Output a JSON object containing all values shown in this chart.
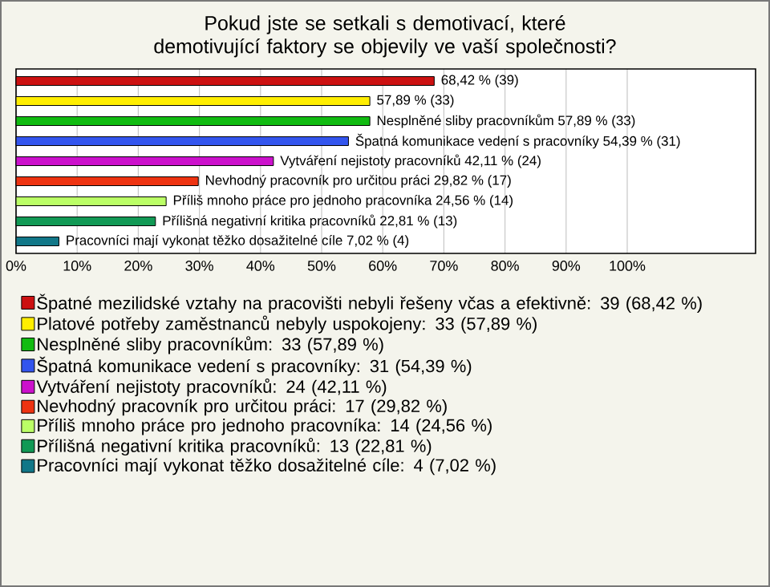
{
  "chart_data": {
    "type": "bar",
    "orientation": "horizontal",
    "title": "Pokud jste se setkali s demotivací, které demotivující faktory se objevily ve vaší společnosti?",
    "categories": [
      null,
      null,
      null,
      null,
      null,
      null,
      null,
      null,
      null
    ],
    "series": [
      {
        "name": "Špatné mezilidské vztahy na pracovišti nebyli řešeny včas a efektivně: 39 (68,42 %)",
        "color": "#cc1111",
        "values": [
          68.42,
          null,
          null,
          null,
          null,
          null,
          null,
          null,
          null
        ],
        "value_labels": [
          "68,42 % (39)",
          null,
          null,
          null,
          null,
          null,
          null,
          null,
          null
        ]
      },
      {
        "name": "Platové potřeby zaměstnanců nebyly uspokojeny: 33 (57,89 %)",
        "color": "#ffee00",
        "values": [
          null,
          57.89,
          null,
          null,
          null,
          null,
          null,
          null,
          null
        ],
        "value_labels": [
          null,
          "57,89 % (33)",
          null,
          null,
          null,
          null,
          null,
          null,
          null
        ]
      },
      {
        "name": "Nesplněné sliby pracovníkům: 33 (57,89 %)",
        "color": "#11bb11",
        "values": [
          null,
          null,
          57.89,
          null,
          null,
          null,
          null,
          null,
          null
        ],
        "value_labels": [
          null,
          null,
          "Nesplněné sliby pracovníkům 57,89 % (33)",
          null,
          null,
          null,
          null,
          null,
          null
        ]
      },
      {
        "name": "Špatná komunikace vedení s pracovníky: 31 (54,39 %)",
        "color": "#3355ee",
        "values": [
          null,
          null,
          null,
          54.39,
          null,
          null,
          null,
          null,
          null
        ],
        "value_labels": [
          null,
          null,
          null,
          "Špatná komunikace vedení s pracovníky 54,39 % (31)",
          null,
          null,
          null,
          null,
          null
        ]
      },
      {
        "name": "Vytváření nejistoty pracovníků: 24 (42,11 %)",
        "color": "#cc11cc",
        "values": [
          null,
          null,
          null,
          null,
          42.11,
          null,
          null,
          null,
          null
        ],
        "value_labels": [
          null,
          null,
          null,
          null,
          "Vytváření nejistoty pracovníků 42,11 % (24)",
          null,
          null,
          null,
          null
        ]
      },
      {
        "name": "Nevhodný pracovník pro určitou práci: 17 (29,82 %)",
        "color": "#ee3311",
        "values": [
          null,
          null,
          null,
          null,
          null,
          29.82,
          null,
          null,
          null
        ],
        "value_labels": [
          null,
          null,
          null,
          null,
          null,
          "Nevhodný pracovník pro určitou práci 29,82 % (17)",
          null,
          null,
          null
        ]
      },
      {
        "name": "Příliš mnoho práce pro jednoho pracovníka: 14 (24,56 %)",
        "color": "#bbff66",
        "values": [
          null,
          null,
          null,
          null,
          null,
          null,
          24.56,
          null,
          null
        ],
        "value_labels": [
          null,
          null,
          null,
          null,
          null,
          null,
          "Příliš mnoho práce pro jednoho pracovníka 24,56 % (14)",
          null,
          null
        ]
      },
      {
        "name": "Přílišná negativní kritika pracovníků: 13 (22,81 %)",
        "color": "#119955",
        "values": [
          null,
          null,
          null,
          null,
          null,
          null,
          null,
          22.81,
          null
        ],
        "value_labels": [
          null,
          null,
          null,
          null,
          null,
          null,
          null,
          "Přílišná negativní kritika pracovníků 22,81 % (13)",
          null
        ]
      },
      {
        "name": "Pracovníci mají vykonat těžko dosažitelné cíle: 4 (7,02 %)",
        "color": "#117788",
        "values": [
          null,
          null,
          null,
          null,
          null,
          null,
          null,
          null,
          7.02
        ],
        "value_labels": [
          null,
          null,
          null,
          null,
          null,
          null,
          null,
          null,
          "Pracovníci mají vykonat těžko dosažitelné cíle 7,02 % (4)"
        ]
      }
    ],
    "xlim": [
      0,
      121
    ],
    "xticks": [
      {
        "value": 0,
        "label": "0%"
      },
      {
        "value": 10,
        "label": "10%"
      },
      {
        "value": 20,
        "label": "20%"
      },
      {
        "value": 30,
        "label": "30%"
      },
      {
        "value": 40,
        "label": "40%"
      },
      {
        "value": 50,
        "label": "50%"
      },
      {
        "value": 60,
        "label": "60%"
      },
      {
        "value": 70,
        "label": "70%"
      },
      {
        "value": 80,
        "label": "80%"
      },
      {
        "value": 90,
        "label": "90%"
      },
      {
        "value": 100,
        "label": "100%"
      }
    ],
    "grid": "x",
    "legend": "bottom",
    "tick_labels": "x"
  }
}
